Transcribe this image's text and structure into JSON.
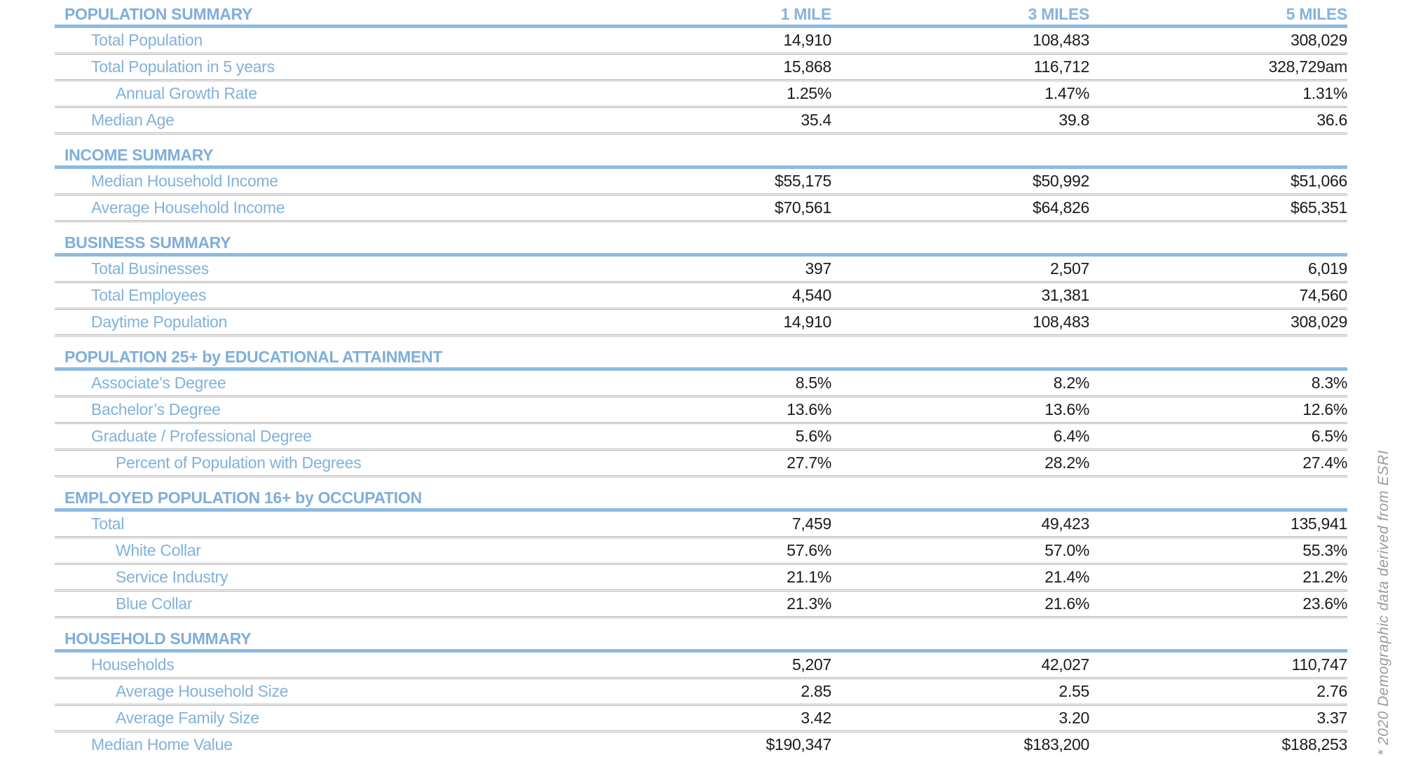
{
  "columns": [
    "1 MILE",
    "3 MILES",
    "5 MILES"
  ],
  "sections": [
    {
      "title": "POPULATION SUMMARY",
      "rows": [
        {
          "label": "Total Population",
          "values": [
            "14,910",
            "108,483",
            "308,029"
          ]
        },
        {
          "label": "Total Population in 5 years",
          "values": [
            "15,868",
            "116,712",
            "328,729am"
          ]
        },
        {
          "label": "Annual Growth Rate",
          "values": [
            "1.25%",
            "1.47%",
            "1.31%"
          ]
        },
        {
          "label": "Median Age",
          "values": [
            "35.4",
            "39.8",
            "36.6"
          ]
        }
      ]
    },
    {
      "title": "INCOME SUMMARY",
      "rows": [
        {
          "label": "Median Household Income",
          "values": [
            "$55,175",
            "$50,992",
            "$51,066"
          ]
        },
        {
          "label": "Average Household Income",
          "values": [
            "$70,561",
            "$64,826",
            "$65,351"
          ]
        }
      ]
    },
    {
      "title": "BUSINESS SUMMARY",
      "rows": [
        {
          "label": "Total Businesses",
          "values": [
            "397",
            "2,507",
            "6,019"
          ]
        },
        {
          "label": "Total Employees",
          "values": [
            "4,540",
            "31,381",
            "74,560"
          ]
        },
        {
          "label": "Daytime Population",
          "values": [
            "14,910",
            "108,483",
            "308,029"
          ]
        }
      ]
    },
    {
      "title": "POPULATION 25+ by EDUCATIONAL ATTAINMENT",
      "rows": [
        {
          "label": "Associate’s Degree",
          "values": [
            "8.5%",
            "8.2%",
            "8.3%"
          ]
        },
        {
          "label": "Bachelor’s Degree",
          "values": [
            "13.6%",
            "13.6%",
            "12.6%"
          ]
        },
        {
          "label": "Graduate / Professional Degree",
          "values": [
            "5.6%",
            "6.4%",
            "6.5%"
          ]
        },
        {
          "label": "Percent of Population with Degrees",
          "values": [
            "27.7%",
            "28.2%",
            "27.4%"
          ]
        }
      ]
    },
    {
      "title": "EMPLOYED POPULATION 16+ by OCCUPATION",
      "rows": [
        {
          "label": "Total",
          "values": [
            "7,459",
            "49,423",
            "135,941"
          ]
        },
        {
          "label": "White Collar",
          "values": [
            "57.6%",
            "57.0%",
            "55.3%"
          ]
        },
        {
          "label": "Service Industry",
          "values": [
            "21.1%",
            "21.4%",
            "21.2%"
          ]
        },
        {
          "label": "Blue Collar",
          "values": [
            "21.3%",
            "21.6%",
            "23.6%"
          ]
        }
      ]
    },
    {
      "title": "HOUSEHOLD SUMMARY",
      "rows": [
        {
          "label": "Households",
          "values": [
            "5,207",
            "42,027",
            "110,747"
          ]
        },
        {
          "label": "Average Household Size",
          "values": [
            "2.85",
            "2.55",
            "2.76"
          ]
        },
        {
          "label": "Average Family Size",
          "values": [
            "3.42",
            "3.20",
            "3.37"
          ]
        },
        {
          "label": "Median Home Value",
          "values": [
            "$190,347",
            "$183,200",
            "$188,253"
          ]
        }
      ]
    }
  ],
  "footnote": "* 2020 Demographic data derived from ESRI",
  "colors": {
    "accent_blue": "#8CBAE1",
    "label_blue": "#82B1DB",
    "value_dark": "#1b1b1d",
    "separator_gray": "#b5b5b5",
    "footnote_gray": "#9b9ba1"
  }
}
